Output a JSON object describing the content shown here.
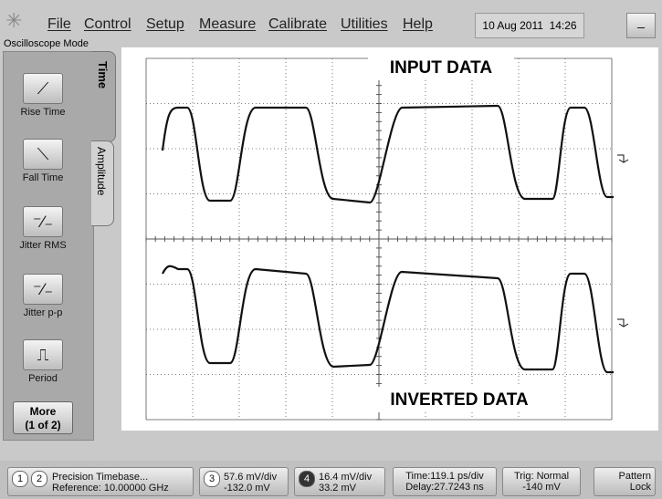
{
  "menu": [
    "File",
    "Control",
    "Setup",
    "Measure",
    "Calibrate",
    "Utilities",
    "Help"
  ],
  "datetime": "10 Aug 2011  14:26",
  "minimize": "_",
  "mode": "Oscilloscope Mode",
  "tabs": [
    "Time",
    "Amplitude"
  ],
  "buttons": [
    "Rise Time",
    "Fall Time",
    "Jitter RMS",
    "Jitter p-p",
    "Period"
  ],
  "more": {
    "title": "More",
    "page": "(1 of 2)"
  },
  "annotations": {
    "top": "INPUT DATA",
    "bottom": "INVERTED DATA"
  },
  "status": {
    "ch1": "1",
    "ch2": "2",
    "timebase": [
      "Precision Timebase...",
      "Reference: 10.00000 GHz"
    ],
    "ch3": "3",
    "ch3_info": [
      "57.6 mV/div",
      "-132.0 mV"
    ],
    "ch4": "4",
    "ch4_info": [
      "16.4 mV/div",
      "33.2 mV"
    ],
    "time": [
      "Time:119.1 ps/div",
      "Delay:27.7243 ns"
    ],
    "trig": [
      "Trig: Normal",
      "-140 mV"
    ],
    "pattern": [
      "Pattern",
      "Lock"
    ]
  }
}
